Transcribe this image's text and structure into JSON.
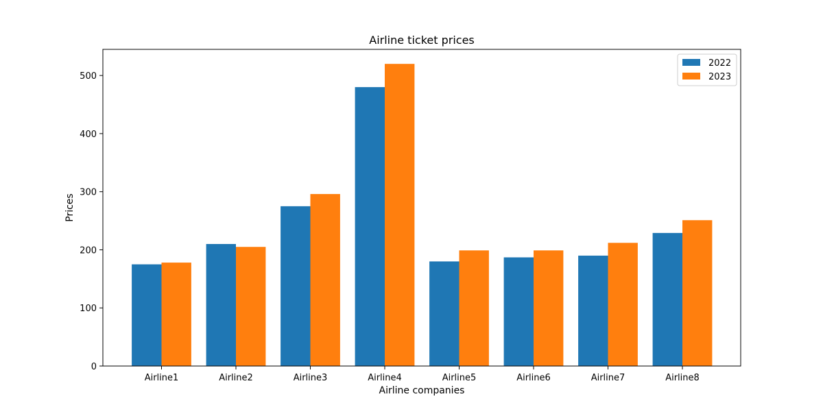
{
  "chart_data": {
    "type": "bar",
    "title": "Airline ticket prices",
    "xlabel": "Airline companies",
    "ylabel": "Prices",
    "categories": [
      "Airline1",
      "Airline2",
      "Airline3",
      "Airline4",
      "Airline5",
      "Airline6",
      "Airline7",
      "Airline8"
    ],
    "series": [
      {
        "name": "2022",
        "color": "#1f77b4",
        "values": [
          175,
          210,
          275,
          480,
          180,
          187,
          190,
          229
        ]
      },
      {
        "name": "2023",
        "color": "#ff7f0e",
        "values": [
          178,
          205,
          296,
          520,
          199,
          199,
          212,
          251
        ]
      }
    ],
    "ylim": [
      0,
      545
    ],
    "yticks": [
      0,
      100,
      200,
      300,
      400,
      500
    ],
    "grid": false,
    "legend_position": "top-right"
  }
}
